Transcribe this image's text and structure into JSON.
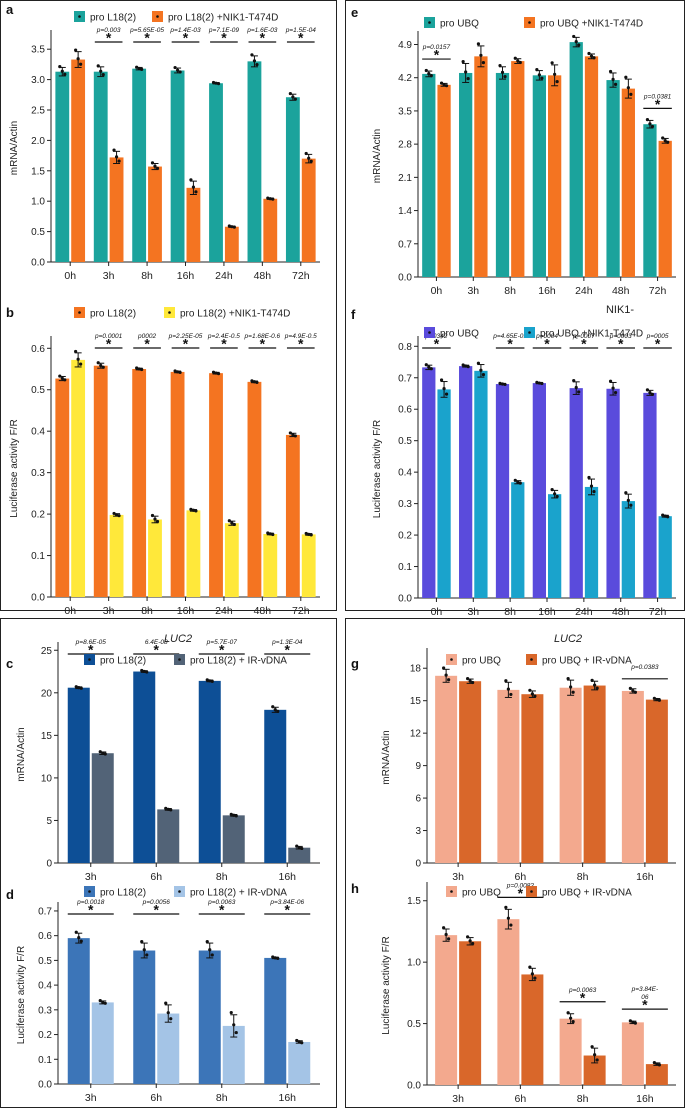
{
  "chart_data": [
    {
      "id": "a",
      "type": "bar",
      "panel_label": "a",
      "ylabel": "mRNA/Actin",
      "ylim": [
        0,
        3.75
      ],
      "yticks": [
        0.0,
        0.5,
        1.0,
        1.5,
        2.0,
        2.5,
        3.0,
        3.5
      ],
      "categories": [
        "0h",
        "3h",
        "8h",
        "16h",
        "24h",
        "48h",
        "72h"
      ],
      "series": [
        {
          "name": "pro L18(2)",
          "color": "#1ba39c",
          "values": [
            3.13,
            3.13,
            3.18,
            3.15,
            2.94,
            3.3,
            2.71
          ],
          "errors": [
            0.07,
            0.08,
            0.02,
            0.04,
            0.01,
            0.09,
            0.05
          ]
        },
        {
          "name": "pro L18(2) +NIK1-T474D",
          "color": "#f47421",
          "values": [
            3.33,
            1.72,
            1.57,
            1.22,
            0.58,
            1.04,
            1.7
          ],
          "errors": [
            0.13,
            0.1,
            0.05,
            0.11,
            0.01,
            0.01,
            0.07
          ]
        }
      ],
      "sig": [
        {
          "from": 0.5,
          "to": 1.5,
          "label": "p=0.003"
        },
        {
          "from": 1.5,
          "to": 2.5,
          "label": "p=5.65E-05"
        },
        {
          "from": 2.5,
          "to": 3.5,
          "label": "p=1.4E-03"
        },
        {
          "from": 3.5,
          "to": 4.5,
          "label": "p=7.1E-09"
        },
        {
          "from": 4.5,
          "to": 5.5,
          "label": "p=1.6E-03"
        },
        {
          "from": 5.5,
          "to": 6.5,
          "label": "p=1.5E-04"
        }
      ]
    },
    {
      "id": "b",
      "type": "bar",
      "panel_label": "b",
      "ylabel": "Luciferase activity F/R",
      "ylim": [
        0,
        0.62
      ],
      "yticks": [
        0.0,
        0.1,
        0.2,
        0.3,
        0.4,
        0.5,
        0.6
      ],
      "categories": [
        "0h",
        "3h",
        "8h",
        "16h",
        "24h",
        "48h",
        "72h"
      ],
      "series": [
        {
          "name": "pro L18(2)",
          "color": "#f47421",
          "values": [
            0.527,
            0.558,
            0.55,
            0.543,
            0.54,
            0.519,
            0.391
          ],
          "errors": [
            0.005,
            0.006,
            0.002,
            0.002,
            0.002,
            0.002,
            0.004
          ]
        },
        {
          "name": "pro L18(2) +NIK1-T474D",
          "color": "#ffe83a",
          "values": [
            0.572,
            0.198,
            0.187,
            0.209,
            0.178,
            0.152,
            0.151
          ],
          "errors": [
            0.017,
            0.003,
            0.008,
            0.002,
            0.005,
            0.002,
            0.002
          ]
        }
      ],
      "sig": [
        {
          "from": 0.5,
          "to": 1.5,
          "label": "p=0.0001"
        },
        {
          "from": 1.5,
          "to": 2.5,
          "label": "p0002"
        },
        {
          "from": 2.5,
          "to": 3.5,
          "label": "p=2.25E-05"
        },
        {
          "from": 3.5,
          "to": 4.5,
          "label": "p=2.4E-0.5"
        },
        {
          "from": 4.5,
          "to": 5.5,
          "label": "p=1.68E-0.6"
        },
        {
          "from": 5.5,
          "to": 6.5,
          "label": "p=4.9E-0.5"
        }
      ]
    },
    {
      "id": "c",
      "type": "bar",
      "panel_label": "c",
      "title": "LUC2",
      "ylabel": "mRNA/Actin",
      "ylim": [
        0,
        25.5
      ],
      "yticks": [
        0,
        5,
        10,
        15,
        20,
        25
      ],
      "categories": [
        "3h",
        "6h",
        "8h",
        "16h"
      ],
      "series": [
        {
          "name": "pro L18(2)",
          "color": "#0d4f96",
          "values": [
            20.6,
            22.5,
            21.4,
            18.0
          ],
          "errors": [
            0.1,
            0.1,
            0.1,
            0.3
          ]
        },
        {
          "name": "pro L18(2) + IR-vDNA",
          "color": "#526377",
          "values": [
            12.9,
            6.3,
            5.6,
            1.8
          ],
          "errors": [
            0.15,
            0.1,
            0.1,
            0.15
          ]
        }
      ],
      "sig": [
        {
          "from": 0,
          "to": 0,
          "label": "p=8.6E-05"
        },
        {
          "from": 1,
          "to": 1,
          "label": "6.4E-08"
        },
        {
          "from": 2,
          "to": 2,
          "label": "p=5.7E-07"
        },
        {
          "from": 3,
          "to": 3,
          "label": "p=1.3E-04"
        }
      ]
    },
    {
      "id": "d",
      "type": "bar",
      "panel_label": "d",
      "ylabel": "Luciferase activity F/R",
      "ylim": [
        0,
        0.72
      ],
      "yticks": [
        0.0,
        0.1,
        0.2,
        0.3,
        0.4,
        0.5,
        0.6,
        0.7
      ],
      "categories": [
        "3h",
        "6h",
        "8h",
        "16h"
      ],
      "series": [
        {
          "name": "pro L18(2)",
          "color": "#3c75b8",
          "values": [
            0.59,
            0.54,
            0.54,
            0.51
          ],
          "errors": [
            0.02,
            0.03,
            0.03,
            0.003
          ]
        },
        {
          "name": "pro L18(2) + IR-vDNA",
          "color": "#a4c4e6",
          "values": [
            0.33,
            0.285,
            0.235,
            0.17
          ],
          "errors": [
            0.006,
            0.035,
            0.045,
            0.005
          ]
        }
      ],
      "sig": [
        {
          "from": 0,
          "to": 0,
          "label": "p=0.0018"
        },
        {
          "from": 1,
          "to": 1,
          "label": "p=0.0056"
        },
        {
          "from": 2,
          "to": 2,
          "label": "p=0.0063"
        },
        {
          "from": 3,
          "to": 3,
          "label": "p=3.84E-06"
        }
      ]
    },
    {
      "id": "e",
      "type": "bar",
      "panel_label": "e",
      "ylabel": "mRNA/Actin",
      "ylim": [
        0,
        5.1
      ],
      "yticks": [
        0.0,
        0.7,
        1.4,
        2.1,
        2.8,
        3.5,
        4.2,
        4.9
      ],
      "categories": [
        "0h",
        "3h",
        "8h",
        "16h",
        "24h",
        "48h",
        "72h"
      ],
      "series": [
        {
          "name": "pro UBQ",
          "color": "#1ba39c",
          "values": [
            4.28,
            4.3,
            4.3,
            4.25,
            4.95,
            4.15,
            3.22
          ],
          "errors": [
            0.06,
            0.2,
            0.13,
            0.1,
            0.1,
            0.15,
            0.08
          ]
        },
        {
          "name": "pro UBQ +NIK1-T474D",
          "color": "#f47421",
          "values": [
            4.05,
            4.65,
            4.55,
            4.25,
            4.65,
            3.97,
            2.87
          ],
          "errors": [
            0.03,
            0.22,
            0.05,
            0.22,
            0.05,
            0.2,
            0.05
          ]
        }
      ],
      "sig": [
        {
          "from": 0,
          "to": 0,
          "label": "p=0.0157"
        },
        {
          "from": 6,
          "to": 6,
          "label": "p=0.0381"
        }
      ]
    },
    {
      "id": "f",
      "type": "bar",
      "panel_label": "f",
      "title": "NIK1-",
      "ylabel": "Luciferase activity F/R",
      "ylim": [
        0,
        0.82
      ],
      "yticks": [
        0.0,
        0.1,
        0.2,
        0.3,
        0.4,
        0.5,
        0.6,
        0.7,
        0.8
      ],
      "categories": [
        "0h",
        "3h",
        "8h",
        "16h",
        "24h",
        "48h",
        "72h"
      ],
      "series": [
        {
          "name": "pro UBQ",
          "color": "#5a4bdc",
          "values": [
            0.733,
            0.737,
            0.68,
            0.683,
            0.667,
            0.665,
            0.652
          ],
          "errors": [
            0.007,
            0.003,
            0.002,
            0.002,
            0.02,
            0.02,
            0.008
          ]
        },
        {
          "name": "pro UBQ +NIK1-T474D",
          "color": "#1aa3cc",
          "values": [
            0.663,
            0.722,
            0.368,
            0.33,
            0.353,
            0.308,
            0.26
          ],
          "errors": [
            0.025,
            0.02,
            0.005,
            0.012,
            0.025,
            0.022,
            0.003
          ]
        }
      ],
      "sig": [
        {
          "from": 0,
          "to": 0,
          "label": "p=0342"
        },
        {
          "from": 2,
          "to": 2,
          "label": "p=4.65E-05"
        },
        {
          "from": 3,
          "to": 3,
          "label": "p=0004"
        },
        {
          "from": 4,
          "to": 4,
          "label": "p=0007"
        },
        {
          "from": 5,
          "to": 5,
          "label": "p=0003"
        },
        {
          "from": 6,
          "to": 6,
          "label": "p=0005"
        }
      ]
    },
    {
      "id": "g",
      "type": "bar",
      "panel_label": "g",
      "title": "LUC2",
      "ylabel": "mRNA/Actin",
      "ylim": [
        0,
        19.5
      ],
      "yticks": [
        0,
        3,
        6,
        9,
        12,
        15,
        18
      ],
      "categories": [
        "3h",
        "6h",
        "8h",
        "16h"
      ],
      "series": [
        {
          "name": "pro UBQ",
          "color": "#f3a98e",
          "values": [
            17.3,
            16.0,
            16.2,
            15.9
          ],
          "errors": [
            0.6,
            0.7,
            0.7,
            0.2
          ]
        },
        {
          "name": "pro UBQ + IR-vDNA",
          "color": "#d9672a",
          "values": [
            16.8,
            15.6,
            16.4,
            15.1
          ],
          "errors": [
            0.2,
            0.3,
            0.4,
            0.1
          ]
        }
      ],
      "sig": [
        {
          "from": 3,
          "to": 3,
          "label": "p=0.0383"
        }
      ]
    },
    {
      "id": "h",
      "type": "bar",
      "panel_label": "h",
      "ylabel": "Luciferase activity F/R",
      "ylim": [
        0,
        1.62
      ],
      "yticks": [
        0.0,
        0.5,
        1.0,
        1.5
      ],
      "categories": [
        "3h",
        "6h",
        "8h",
        "16h"
      ],
      "series": [
        {
          "name": "pro UBQ",
          "color": "#f3a98e",
          "values": [
            1.22,
            1.35,
            0.54,
            0.51
          ],
          "errors": [
            0.05,
            0.08,
            0.04,
            0.01
          ]
        },
        {
          "name": "pro UBQ + IR-vDNA",
          "color": "#d9672a",
          "values": [
            1.17,
            0.9,
            0.24,
            0.17
          ],
          "errors": [
            0.03,
            0.05,
            0.06,
            0.01
          ]
        }
      ],
      "sig": [
        {
          "from": 1,
          "to": 1,
          "label": "p=0.0082"
        },
        {
          "from": 2,
          "to": 2,
          "label": "p=0.0063"
        },
        {
          "from": 3,
          "to": 3,
          "label": "p=3.84E-\n06"
        }
      ]
    }
  ]
}
